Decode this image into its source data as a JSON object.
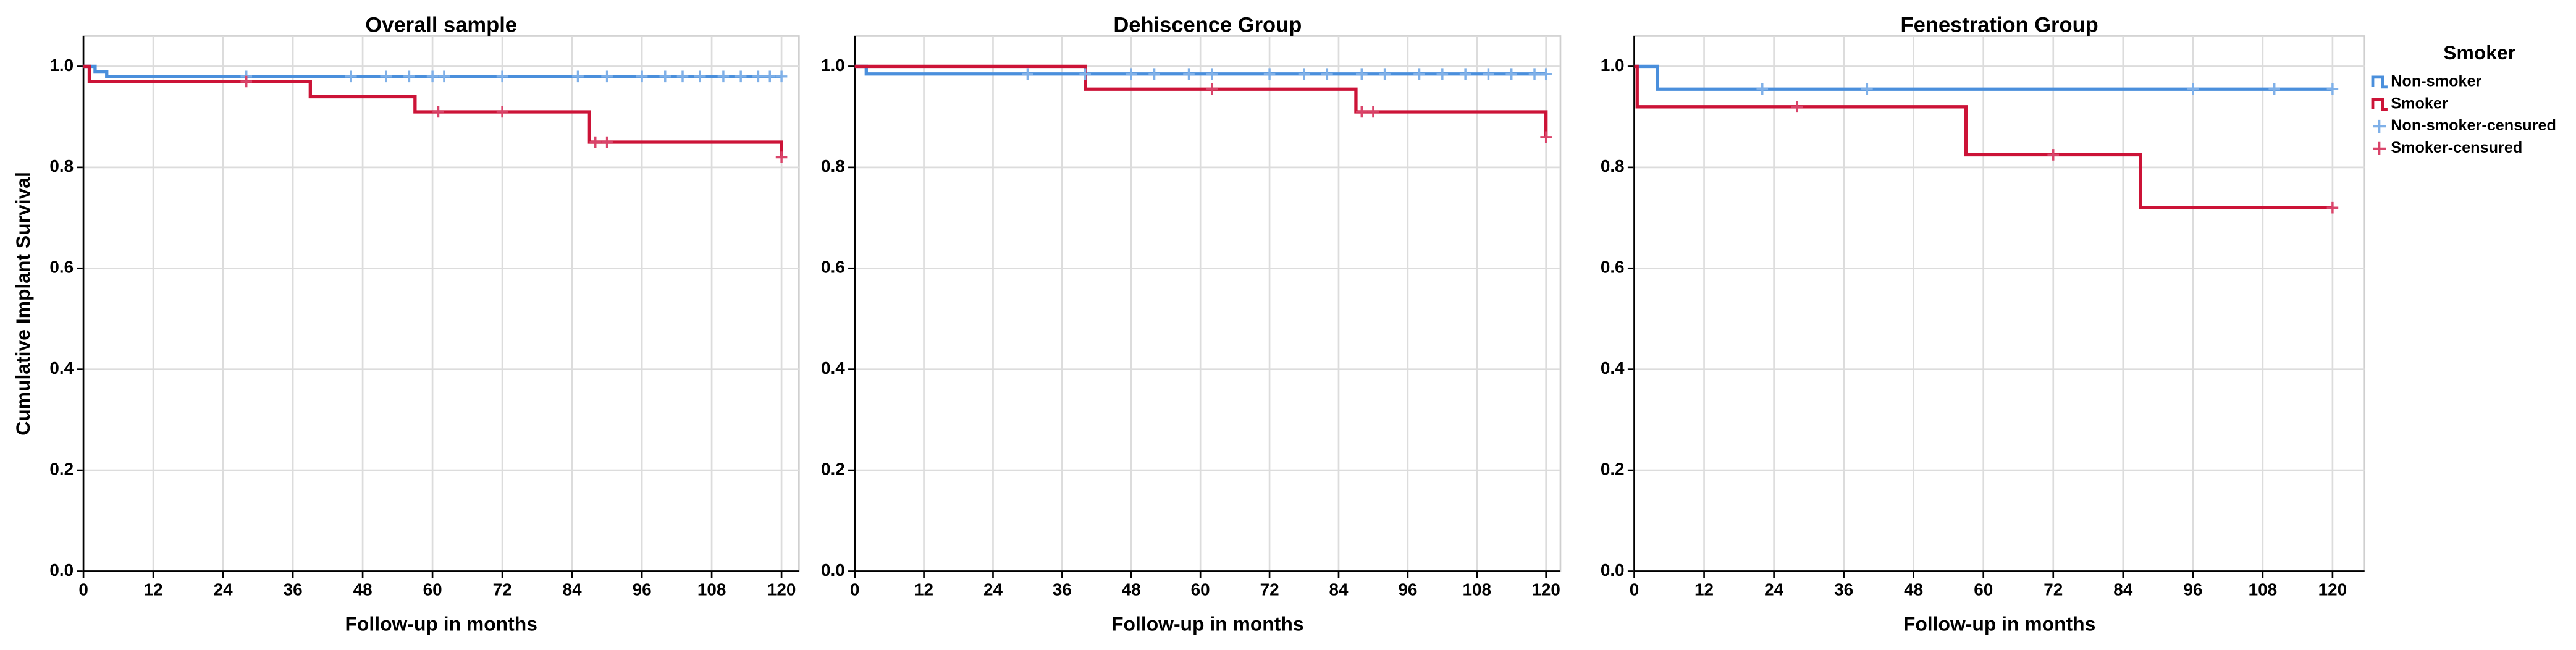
{
  "chart_data": [
    {
      "type": "step",
      "title": "Overall sample",
      "x_label": "Follow-up in months",
      "y_label": "Cumulative Implant Survival",
      "xlim": [
        0,
        123
      ],
      "ylim": [
        0,
        1.06
      ],
      "grid": true,
      "xticks": [
        0,
        12,
        24,
        36,
        48,
        60,
        72,
        84,
        96,
        108,
        120
      ],
      "yticks": [
        {
          "value": 0,
          "label": "0.0"
        },
        0.2,
        0.4,
        0.6,
        0.8,
        {
          "value": 1,
          "label": "1.0"
        }
      ],
      "series": [
        {
          "name": "Non-smoker",
          "color": "#4a8fdc",
          "x": [
            0,
            2,
            4,
            120
          ],
          "values": [
            1,
            0.99,
            0.98,
            0.98
          ]
        },
        {
          "name": "Smoker",
          "color": "#cc1337",
          "x": [
            0,
            1,
            39,
            57,
            87,
            120
          ],
          "values": [
            1,
            0.97,
            0.94,
            0.91,
            0.85,
            0.82
          ]
        },
        {
          "name": "Non-smoker-censured",
          "color": "#7fb0e8",
          "marker": "+",
          "x": [
            28,
            46,
            52,
            56,
            60,
            62,
            72,
            85,
            90,
            96,
            100,
            103,
            106,
            110,
            113,
            116,
            118,
            120
          ],
          "values": [
            0.98,
            0.98,
            0.98,
            0.98,
            0.98,
            0.98,
            0.98,
            0.98,
            0.98,
            0.98,
            0.98,
            0.98,
            0.98,
            0.98,
            0.98,
            0.98,
            0.98,
            0.98
          ]
        },
        {
          "name": "Smoker-censured",
          "color": "#d9446a",
          "marker": "+",
          "x": [
            28,
            61,
            72,
            88,
            90,
            120
          ],
          "values": [
            0.97,
            0.91,
            0.91,
            0.85,
            0.85,
            0.82
          ]
        }
      ]
    },
    {
      "type": "step",
      "title": "Dehiscence Group",
      "x_label": "Follow-up in months",
      "xlim": [
        0,
        122.5
      ],
      "ylim": [
        0,
        1.06
      ],
      "grid": true,
      "xticks": [
        0,
        12,
        24,
        36,
        48,
        60,
        72,
        84,
        96,
        108,
        120
      ],
      "yticks": [
        {
          "value": 0,
          "label": "0.0"
        },
        0.2,
        0.4,
        0.6,
        0.8,
        {
          "value": 1,
          "label": "1.0"
        }
      ],
      "series": [
        {
          "name": "Non-smoker",
          "color": "#4a8fdc",
          "x": [
            0,
            2,
            120
          ],
          "values": [
            1,
            0.985,
            0.985
          ]
        },
        {
          "name": "Smoker",
          "color": "#cc1337",
          "x": [
            0,
            40,
            87,
            120
          ],
          "values": [
            1,
            0.955,
            0.91,
            0.86
          ]
        },
        {
          "name": "Non-smoker-censured",
          "color": "#7fb0e8",
          "marker": "+",
          "x": [
            30,
            40,
            48,
            52,
            58,
            62,
            72,
            78,
            82,
            88,
            92,
            98,
            102,
            106,
            110,
            114,
            118,
            120
          ],
          "values": [
            0.985,
            0.985,
            0.985,
            0.985,
            0.985,
            0.985,
            0.985,
            0.985,
            0.985,
            0.985,
            0.985,
            0.985,
            0.985,
            0.985,
            0.985,
            0.985,
            0.985,
            0.985
          ]
        },
        {
          "name": "Smoker-censured",
          "color": "#d9446a",
          "marker": "+",
          "x": [
            62,
            88,
            90,
            120
          ],
          "values": [
            0.955,
            0.91,
            0.91,
            0.86
          ]
        }
      ]
    },
    {
      "type": "step",
      "title": "Fenestration Group",
      "x_label": "Follow-up in months",
      "xlim": [
        0,
        125.5
      ],
      "ylim": [
        0,
        1.06
      ],
      "grid": true,
      "legend": "right",
      "legend_title": "Smoker",
      "xticks": [
        0,
        12,
        24,
        36,
        48,
        60,
        72,
        84,
        96,
        108,
        120
      ],
      "yticks": [
        {
          "value": 0,
          "label": "0.0"
        },
        0.2,
        0.4,
        0.6,
        0.8,
        {
          "value": 1,
          "label": "1.0"
        }
      ],
      "series": [
        {
          "name": "Non-smoker",
          "color": "#4a8fdc",
          "x": [
            0,
            4,
            120
          ],
          "values": [
            1,
            0.955,
            0.955
          ]
        },
        {
          "name": "Smoker",
          "color": "#cc1337",
          "x": [
            0,
            0.5,
            57,
            87,
            120
          ],
          "values": [
            1,
            0.92,
            0.825,
            0.72,
            0.72
          ]
        },
        {
          "name": "Non-smoker-censured",
          "color": "#7fb0e8",
          "marker": "+",
          "x": [
            22,
            40,
            96,
            110,
            120
          ],
          "values": [
            0.955,
            0.955,
            0.955,
            0.955,
            0.955
          ]
        },
        {
          "name": "Smoker-censured",
          "color": "#d9446a",
          "marker": "+",
          "x": [
            28,
            72,
            120
          ],
          "values": [
            0.92,
            0.825,
            0.72
          ]
        }
      ]
    }
  ]
}
